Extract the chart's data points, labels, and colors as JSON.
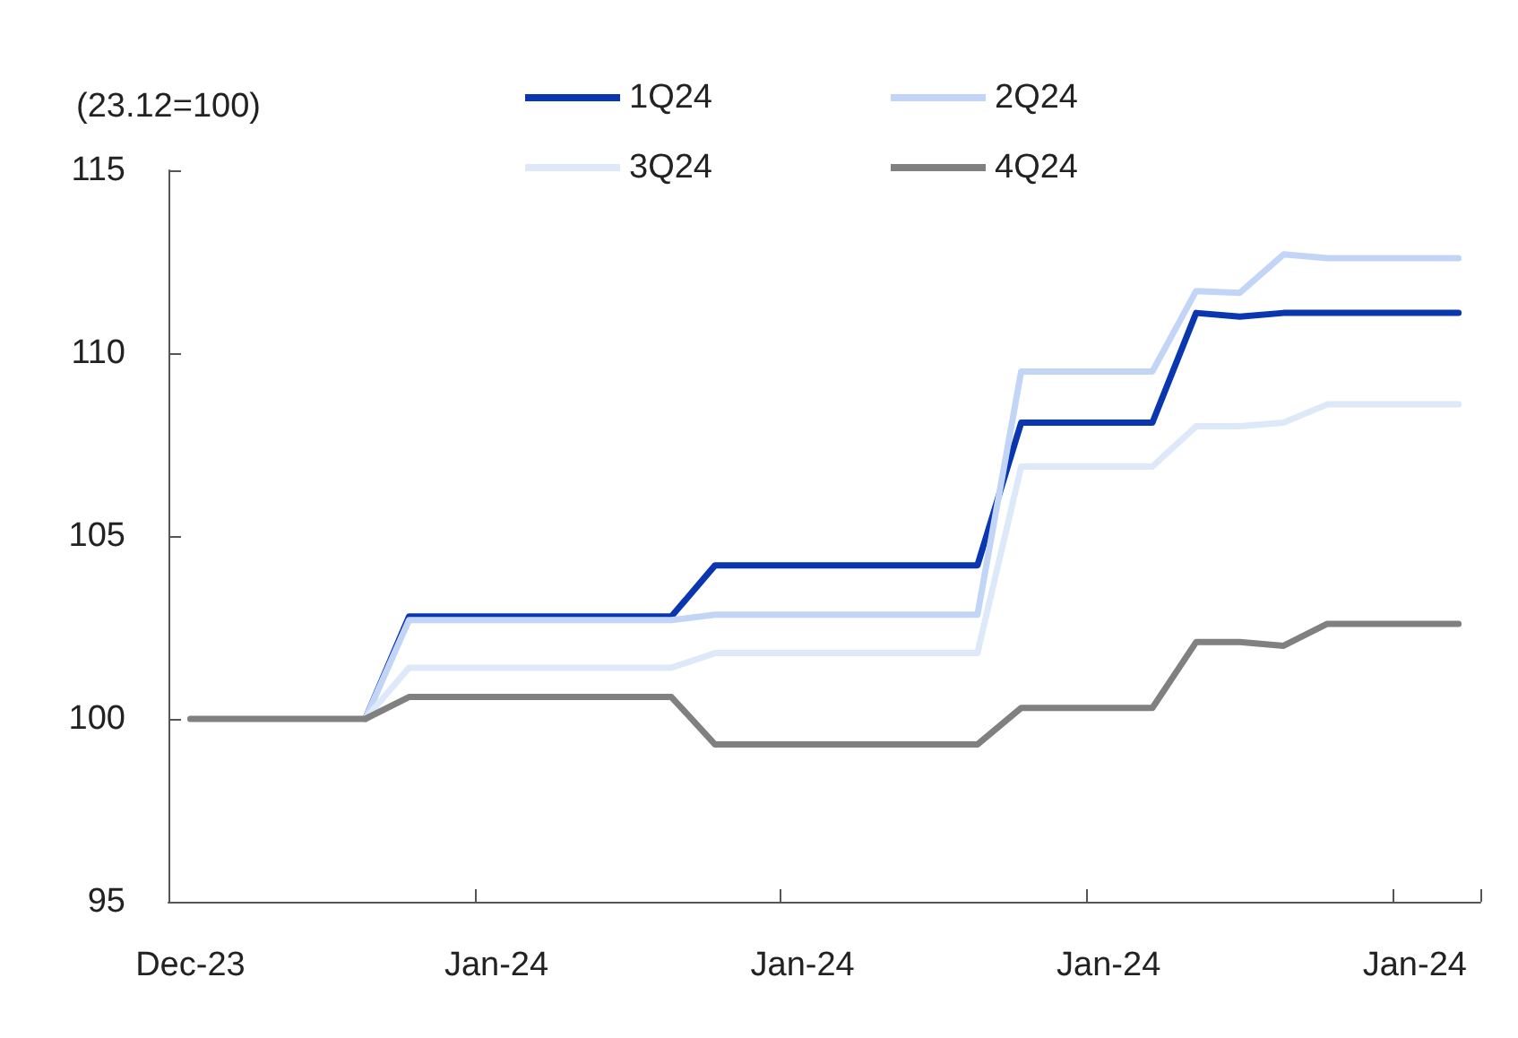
{
  "chart_data": {
    "type": "line",
    "ylabel": "(23.12=100)",
    "categories": [
      "Dec-23",
      null,
      null,
      null,
      null,
      null,
      null,
      "Jan-24",
      null,
      null,
      null,
      null,
      null,
      null,
      "Jan-24",
      null,
      null,
      null,
      null,
      null,
      null,
      "Jan-24",
      null,
      null,
      null,
      null,
      null,
      null,
      "Jan-24",
      null
    ],
    "series": [
      {
        "name": "1Q24",
        "color": "#0a37b0",
        "values": [
          null,
          null,
          null,
          null,
          100,
          102.8,
          102.8,
          102.8,
          102.8,
          102.8,
          102.8,
          102.8,
          104.2,
          104.2,
          104.2,
          104.2,
          104.2,
          104.2,
          104.2,
          108.1,
          108.1,
          108.1,
          108.1,
          111.1,
          111.0,
          111.1,
          111.1,
          111.1,
          111.1,
          111.1
        ]
      },
      {
        "name": "2Q24",
        "color": "#c2d5f7",
        "values": [
          null,
          null,
          null,
          null,
          100,
          102.7,
          102.7,
          102.7,
          102.7,
          102.7,
          102.7,
          102.7,
          102.85,
          102.85,
          102.85,
          102.85,
          102.85,
          102.85,
          102.85,
          109.5,
          109.5,
          109.5,
          109.5,
          111.7,
          111.65,
          112.7,
          112.6,
          112.6,
          112.6,
          112.6
        ]
      },
      {
        "name": "3Q24",
        "color": "#dde8f8",
        "values": [
          null,
          null,
          null,
          null,
          100,
          101.4,
          101.4,
          101.4,
          101.4,
          101.4,
          101.4,
          101.4,
          101.8,
          101.8,
          101.8,
          101.8,
          101.8,
          101.8,
          101.8,
          106.9,
          106.9,
          106.9,
          106.9,
          108.0,
          108.0,
          108.1,
          108.6,
          108.6,
          108.6,
          108.6
        ]
      },
      {
        "name": "4Q24",
        "color": "#808080",
        "values": [
          100,
          100,
          100,
          100,
          100,
          100.6,
          100.6,
          100.6,
          100.6,
          100.6,
          100.6,
          100.6,
          99.3,
          99.3,
          99.3,
          99.3,
          99.3,
          99.3,
          99.3,
          100.3,
          100.3,
          100.3,
          100.3,
          102.1,
          102.1,
          102.0,
          102.6,
          102.6,
          102.6,
          102.6
        ]
      }
    ],
    "ylim": [
      95,
      115
    ],
    "yticks": [
      95,
      100,
      105,
      110,
      115
    ],
    "grid": false,
    "legend": "top",
    "marker": "none",
    "line_style": "solid"
  }
}
